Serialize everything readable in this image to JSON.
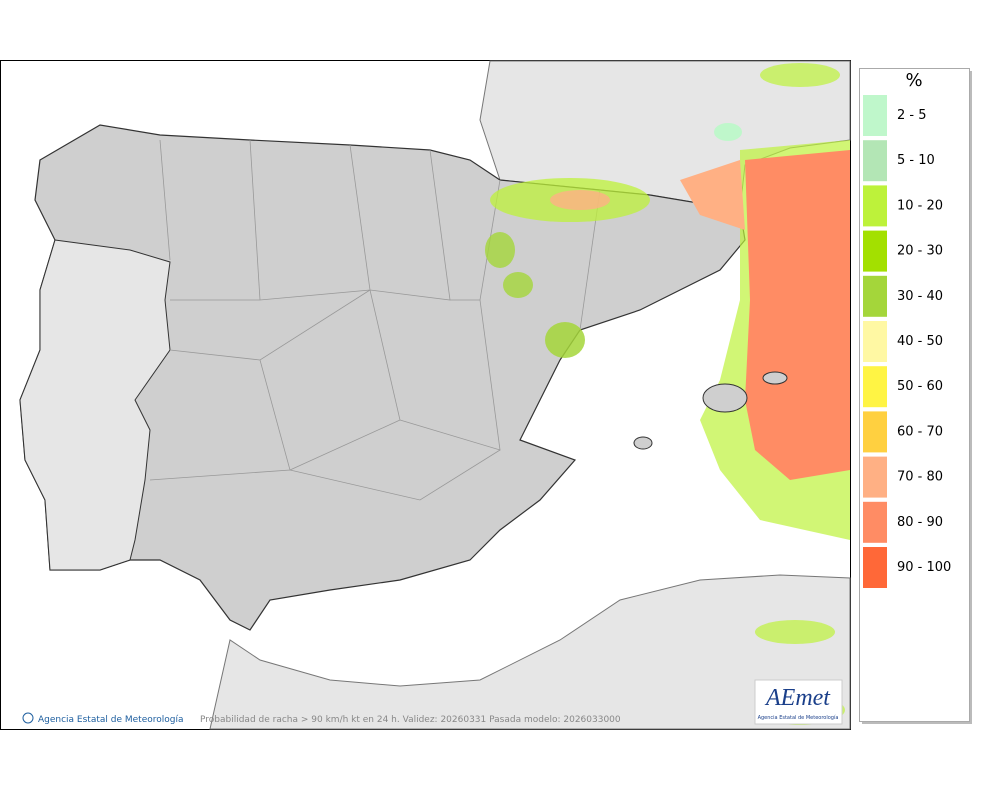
{
  "legend": {
    "title": "%",
    "items": [
      {
        "label": "2 - 5",
        "color": "#bff7cb"
      },
      {
        "label": "5 - 10",
        "color": "#b3e6b5"
      },
      {
        "label": "10 - 20",
        "color": "#bdf23a"
      },
      {
        "label": "20 - 30",
        "color": "#a3e000"
      },
      {
        "label": "30 - 40",
        "color": "#a4d63a"
      },
      {
        "label": "40 - 50",
        "color": "#fff8a3"
      },
      {
        "label": "50 - 60",
        "color": "#fff444"
      },
      {
        "label": "60 - 70",
        "color": "#ffd040"
      },
      {
        "label": "70 - 80",
        "color": "#ffb084"
      },
      {
        "label": "80 - 90",
        "color": "#ff8c64"
      },
      {
        "label": "90 - 100",
        "color": "#ff6838"
      }
    ]
  },
  "footer": {
    "agency": "Agencia Estatal de Meteorología",
    "caption": "Probabilidad de racha > 90 km/h kt en 24 h. Validez: 20260331 Pasada modelo: 2026033000"
  },
  "logo": {
    "text": "AEmet",
    "subtitle": "Agencia Estatal de Meteorología"
  }
}
